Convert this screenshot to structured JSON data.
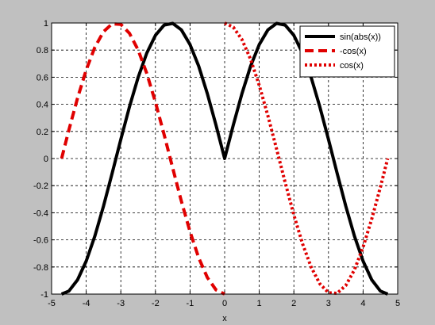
{
  "chart_data": {
    "type": "line",
    "title": "",
    "xlabel": "x",
    "ylabel": "",
    "xlim": [
      -5,
      5
    ],
    "ylim": [
      -1,
      1
    ],
    "xticks": [
      -5,
      -4,
      -3,
      -2,
      -1,
      0,
      1,
      2,
      3,
      4,
      5
    ],
    "yticks": [
      -1,
      -0.8,
      -0.6,
      -0.4,
      -0.2,
      0,
      0.2,
      0.4,
      0.6,
      0.8,
      1
    ],
    "xtick_labels": [
      "-5",
      "-4",
      "-3",
      "-2",
      "-1",
      "0",
      "1",
      "2",
      "3",
      "4",
      "5"
    ],
    "ytick_labels": [
      "-1",
      "-0.8",
      "-0.6",
      "-0.4",
      "-0.2",
      "0",
      "0.2",
      "0.4",
      "0.6",
      "0.8",
      "1"
    ],
    "grid": true,
    "legend_position": "top-right",
    "series": [
      {
        "name": "sin(abs(x))",
        "color": "#000000",
        "style": "solid",
        "x": [
          -4.712,
          -4.5,
          -4.25,
          -4.0,
          -3.75,
          -3.5,
          -3.25,
          -3.0,
          -2.75,
          -2.5,
          -2.25,
          -2.0,
          -1.75,
          -1.5,
          -1.25,
          -1.0,
          -0.75,
          -0.5,
          -0.25,
          0.0,
          0.25,
          0.5,
          0.75,
          1.0,
          1.25,
          1.5,
          1.75,
          2.0,
          2.25,
          2.5,
          2.75,
          3.0,
          3.25,
          3.5,
          3.75,
          4.0,
          4.25,
          4.5,
          4.712
        ],
        "y": [
          -1.0,
          -0.978,
          -0.895,
          -0.757,
          -0.572,
          -0.351,
          -0.108,
          0.141,
          0.382,
          0.598,
          0.778,
          0.909,
          0.984,
          0.997,
          0.949,
          0.841,
          0.682,
          0.479,
          0.247,
          0.0,
          0.247,
          0.479,
          0.682,
          0.841,
          0.949,
          0.997,
          0.984,
          0.909,
          0.778,
          0.598,
          0.382,
          0.141,
          -0.108,
          -0.351,
          -0.572,
          -0.757,
          -0.895,
          -0.978,
          -1.0
        ]
      },
      {
        "name": "-cos(x)",
        "color": "#e00000",
        "style": "dashed",
        "x": [
          -4.712,
          -4.5,
          -4.25,
          -4.0,
          -3.75,
          -3.5,
          -3.25,
          -3.0,
          -2.75,
          -2.5,
          -2.25,
          -2.0,
          -1.75,
          -1.5,
          -1.25,
          -1.0,
          -0.75,
          -0.5,
          -0.25,
          0.0
        ],
        "y": [
          0.0,
          0.211,
          0.446,
          0.654,
          0.821,
          0.936,
          0.994,
          0.99,
          0.924,
          0.801,
          0.628,
          0.416,
          0.178,
          -0.071,
          -0.315,
          -0.54,
          -0.732,
          -0.878,
          -0.969,
          -1.0
        ]
      },
      {
        "name": "cos(x)",
        "color": "#e00000",
        "style": "dotted",
        "x": [
          0.0,
          0.25,
          0.5,
          0.75,
          1.0,
          1.25,
          1.5,
          1.75,
          2.0,
          2.25,
          2.5,
          2.75,
          3.0,
          3.25,
          3.5,
          3.75,
          4.0,
          4.25,
          4.5,
          4.712
        ],
        "y": [
          1.0,
          0.969,
          0.878,
          0.732,
          0.54,
          0.315,
          0.071,
          -0.178,
          -0.416,
          -0.628,
          -0.801,
          -0.924,
          -0.99,
          -0.994,
          -0.936,
          -0.821,
          -0.654,
          -0.446,
          -0.211,
          0.0
        ]
      }
    ]
  }
}
